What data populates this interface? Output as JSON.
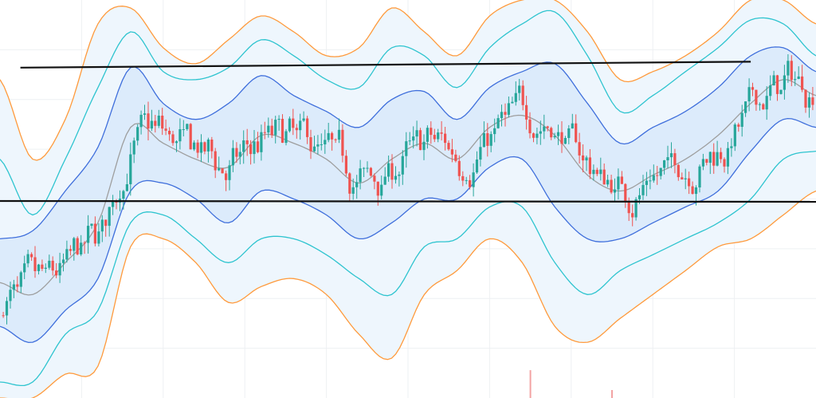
{
  "chart_data": {
    "type": "candlestick",
    "title": "",
    "xlabel": "",
    "ylabel": "",
    "x_range": [
      0,
      100
    ],
    "y_range": [
      0,
      100
    ],
    "grid": true,
    "legend": "none",
    "colors": {
      "up": "#26a69a",
      "down": "#ef5350",
      "band_outer": "#ff9a3c",
      "band_mid": "#2ec4cf",
      "band_inner": "#3f6fdc",
      "basis": "#9e9e9e",
      "fill_outer": "#eef6fd",
      "fill_inner": "#dcebfb",
      "trendline": "#111111",
      "volume": "#f2a3a3"
    },
    "bands": {
      "x": [
        0,
        4,
        8,
        12,
        16,
        20,
        24,
        28,
        32,
        36,
        40,
        44,
        48,
        52,
        56,
        60,
        64,
        68,
        72,
        76,
        80,
        84,
        88,
        92,
        96,
        100
      ],
      "basis": [
        29,
        26,
        34,
        44,
        68,
        64,
        60,
        58,
        66,
        64,
        60,
        54,
        60,
        64,
        60,
        68,
        71,
        66,
        56,
        52,
        56,
        60,
        66,
        74,
        80,
        76
      ],
      "inner_upper": [
        40,
        42,
        52,
        63,
        83,
        74,
        70,
        74,
        81,
        76,
        72,
        68,
        75,
        77,
        70,
        78,
        82,
        84,
        74,
        64,
        68,
        72,
        78,
        86,
        88,
        82
      ],
      "inner_lower": [
        18,
        14,
        22,
        30,
        52,
        54,
        50,
        44,
        52,
        50,
        46,
        40,
        44,
        50,
        50,
        58,
        60,
        48,
        40,
        40,
        44,
        48,
        52,
        62,
        70,
        68
      ],
      "mid_upper": [
        60,
        46,
        60,
        78,
        92,
        82,
        80,
        83,
        90,
        86,
        80,
        78,
        88,
        86,
        78,
        88,
        94,
        97,
        86,
        72,
        76,
        82,
        88,
        95,
        94,
        86
      ],
      "mid_lower": [
        4,
        4,
        16,
        22,
        44,
        46,
        40,
        34,
        40,
        40,
        36,
        30,
        26,
        38,
        40,
        48,
        48,
        34,
        26,
        32,
        36,
        40,
        44,
        50,
        60,
        62
      ],
      "outer_upper": [
        80,
        60,
        70,
        94,
        98,
        88,
        84,
        90,
        96,
        92,
        86,
        88,
        98,
        92,
        86,
        96,
        100,
        100,
        92,
        80,
        82,
        86,
        92,
        100,
        100,
        94
      ],
      "outer_lower": [
        0,
        0,
        6,
        8,
        38,
        40,
        34,
        24,
        28,
        30,
        26,
        16,
        10,
        26,
        32,
        40,
        34,
        18,
        14,
        20,
        26,
        32,
        38,
        40,
        46,
        52
      ]
    },
    "trendlines": [
      {
        "x1": 2.5,
        "y1": 83,
        "x2": 92,
        "y2": 84.5
      },
      {
        "x1": 0,
        "y1": 49.5,
        "x2": 100,
        "y2": 49.3
      }
    ],
    "volume": [
      {
        "x": 65,
        "value": 7
      },
      {
        "x": 75,
        "value": 2
      }
    ]
  }
}
